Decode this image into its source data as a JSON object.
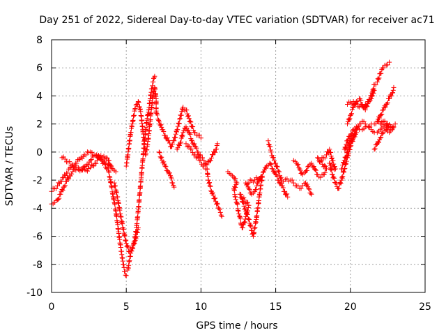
{
  "chart_data": {
    "type": "scatter",
    "title": "Day 251 of 2022, Sidereal Day-to-day VTEC variation (SDTVAR) for receiver ac71",
    "xlabel": "GPS time / hours",
    "ylabel": "SDTVAR / TECUs",
    "xlim": [
      0,
      25
    ],
    "ylim": [
      -10,
      8
    ],
    "xticks": [
      0,
      5,
      10,
      15,
      20,
      25
    ],
    "yticks": [
      -10,
      -8,
      -6,
      -4,
      -2,
      0,
      2,
      4,
      6,
      8
    ],
    "grid": true,
    "marker": "+",
    "color": "#ff0000",
    "series": [
      {
        "name": "SDTVAR",
        "points": [
          [
            0.0,
            -2.8
          ],
          [
            0.2,
            -2.6
          ],
          [
            0.4,
            -2.4
          ],
          [
            0.6,
            -2.1
          ],
          [
            0.8,
            -1.8
          ],
          [
            1.0,
            -1.5
          ],
          [
            1.3,
            -1.1
          ],
          [
            1.6,
            -0.8
          ],
          [
            1.9,
            -0.5
          ],
          [
            2.2,
            -0.2
          ],
          [
            2.6,
            0.0
          ],
          [
            3.0,
            -0.3
          ],
          [
            3.4,
            -0.6
          ],
          [
            3.8,
            -0.9
          ],
          [
            4.1,
            -1.2
          ],
          [
            4.3,
            -1.4
          ],
          [
            0.0,
            -3.7
          ],
          [
            0.2,
            -3.6
          ],
          [
            0.4,
            -3.4
          ],
          [
            0.6,
            -3.0
          ],
          [
            0.8,
            -2.5
          ],
          [
            1.0,
            -2.1
          ],
          [
            1.2,
            -1.7
          ],
          [
            1.4,
            -1.4
          ],
          [
            1.7,
            -1.1
          ],
          [
            2.0,
            -1.2
          ],
          [
            2.3,
            -1.3
          ],
          [
            2.6,
            -1.1
          ],
          [
            2.9,
            -0.8
          ],
          [
            3.2,
            -0.4
          ],
          [
            3.5,
            -0.3
          ],
          [
            3.8,
            -0.6
          ],
          [
            4.0,
            -1.0
          ],
          [
            0.7,
            -0.4
          ],
          [
            0.9,
            -0.5
          ],
          [
            1.1,
            -0.7
          ],
          [
            1.4,
            -0.9
          ],
          [
            1.7,
            -1.1
          ],
          [
            2.0,
            -1.3
          ],
          [
            2.3,
            -1.0
          ],
          [
            2.6,
            -0.6
          ],
          [
            2.8,
            -0.3
          ],
          [
            3.0,
            -0.2
          ],
          [
            3.3,
            -0.5
          ],
          [
            3.8,
            -1.3
          ],
          [
            3.9,
            -1.8
          ],
          [
            4.0,
            -2.4
          ],
          [
            4.1,
            -3.0
          ],
          [
            4.2,
            -3.6
          ],
          [
            4.3,
            -4.2
          ],
          [
            4.4,
            -5.0
          ],
          [
            4.5,
            -5.8
          ],
          [
            4.6,
            -6.6
          ],
          [
            4.7,
            -7.3
          ],
          [
            4.8,
            -8.0
          ],
          [
            4.9,
            -8.5
          ],
          [
            5.0,
            -8.8
          ],
          [
            4.2,
            -2.2
          ],
          [
            4.4,
            -3.2
          ],
          [
            4.6,
            -4.4
          ],
          [
            4.8,
            -5.5
          ],
          [
            5.0,
            -6.5
          ],
          [
            5.2,
            -7.1
          ],
          [
            5.4,
            -6.9
          ],
          [
            5.6,
            -6.3
          ],
          [
            5.8,
            -5.4
          ],
          [
            5.1,
            -8.4
          ],
          [
            5.2,
            -7.8
          ],
          [
            5.3,
            -7.2
          ],
          [
            5.4,
            -6.8
          ],
          [
            5.5,
            -6.5
          ],
          [
            5.6,
            -6.0
          ],
          [
            5.7,
            -5.2
          ],
          [
            5.8,
            -4.2
          ],
          [
            5.9,
            -3.0
          ],
          [
            6.0,
            -1.8
          ],
          [
            6.1,
            -0.6
          ],
          [
            6.2,
            0.6
          ],
          [
            6.3,
            1.6
          ],
          [
            6.4,
            2.4
          ],
          [
            6.5,
            3.0
          ],
          [
            6.6,
            3.8
          ],
          [
            6.7,
            4.5
          ],
          [
            6.8,
            5.0
          ],
          [
            6.9,
            5.4
          ],
          [
            5.0,
            -1.0
          ],
          [
            5.1,
            -0.2
          ],
          [
            5.2,
            0.6
          ],
          [
            5.3,
            1.4
          ],
          [
            5.4,
            2.0
          ],
          [
            5.5,
            2.6
          ],
          [
            5.6,
            3.1
          ],
          [
            5.7,
            3.4
          ],
          [
            5.8,
            3.6
          ],
          [
            5.9,
            3.2
          ],
          [
            6.0,
            2.6
          ],
          [
            6.1,
            1.6
          ],
          [
            6.2,
            0.6
          ],
          [
            6.3,
            -0.2
          ],
          [
            6.4,
            0.4
          ],
          [
            6.5,
            1.2
          ],
          [
            6.6,
            2.2
          ],
          [
            6.7,
            3.2
          ],
          [
            6.8,
            4.2
          ],
          [
            6.9,
            4.6
          ],
          [
            7.0,
            3.8
          ],
          [
            7.0,
            2.8
          ],
          [
            7.2,
            2.2
          ],
          [
            7.4,
            1.6
          ],
          [
            7.6,
            1.2
          ],
          [
            7.8,
            0.8
          ],
          [
            8.0,
            0.4
          ],
          [
            8.2,
            0.8
          ],
          [
            8.4,
            1.6
          ],
          [
            8.6,
            2.4
          ],
          [
            8.8,
            3.2
          ],
          [
            9.0,
            3.0
          ],
          [
            9.2,
            2.4
          ],
          [
            9.4,
            1.8
          ],
          [
            9.6,
            1.4
          ],
          [
            9.8,
            1.2
          ],
          [
            10.0,
            1.0
          ],
          [
            7.2,
            0.0
          ],
          [
            7.4,
            -0.6
          ],
          [
            7.6,
            -1.0
          ],
          [
            7.8,
            -1.4
          ],
          [
            8.0,
            -1.8
          ],
          [
            8.1,
            -2.2
          ],
          [
            8.2,
            -2.5
          ],
          [
            8.4,
            0.2
          ],
          [
            8.6,
            0.6
          ],
          [
            8.8,
            1.4
          ],
          [
            9.0,
            1.8
          ],
          [
            9.2,
            1.4
          ],
          [
            9.4,
            0.8
          ],
          [
            9.6,
            0.4
          ],
          [
            9.8,
            0.0
          ],
          [
            10.0,
            -0.4
          ],
          [
            10.2,
            -0.6
          ],
          [
            10.4,
            -0.9
          ],
          [
            10.6,
            -0.6
          ],
          [
            10.8,
            -0.2
          ],
          [
            11.0,
            0.2
          ],
          [
            11.1,
            0.6
          ],
          [
            9.0,
            0.6
          ],
          [
            9.3,
            0.2
          ],
          [
            9.6,
            -0.2
          ],
          [
            9.9,
            -0.6
          ],
          [
            10.2,
            -1.0
          ],
          [
            10.4,
            -1.2
          ],
          [
            10.5,
            -2.0
          ],
          [
            10.6,
            -2.4
          ],
          [
            10.7,
            -2.8
          ],
          [
            11.2,
            -4.0
          ],
          [
            11.3,
            -4.3
          ],
          [
            11.4,
            -4.6
          ],
          [
            11.8,
            -1.4
          ],
          [
            12.0,
            -1.6
          ],
          [
            12.2,
            -1.8
          ],
          [
            12.4,
            -2.2
          ],
          [
            12.2,
            -2.6
          ],
          [
            12.3,
            -3.2
          ],
          [
            12.4,
            -3.6
          ],
          [
            12.5,
            -4.2
          ],
          [
            12.6,
            -4.6
          ],
          [
            12.7,
            -5.2
          ],
          [
            12.8,
            -5.4
          ],
          [
            12.9,
            -5.0
          ],
          [
            13.0,
            -4.6
          ],
          [
            13.1,
            -4.2
          ],
          [
            13.2,
            -3.8
          ],
          [
            12.6,
            -3.0
          ],
          [
            12.8,
            -3.6
          ],
          [
            13.0,
            -4.2
          ],
          [
            13.2,
            -4.8
          ],
          [
            13.4,
            -5.6
          ],
          [
            13.5,
            -6.0
          ],
          [
            13.6,
            -5.4
          ],
          [
            13.7,
            -4.8
          ],
          [
            13.8,
            -4.0
          ],
          [
            13.9,
            -3.2
          ],
          [
            14.0,
            -2.4
          ],
          [
            14.1,
            -1.8
          ],
          [
            13.0,
            -2.2
          ],
          [
            13.2,
            -2.6
          ],
          [
            13.4,
            -3.0
          ],
          [
            13.6,
            -2.8
          ],
          [
            13.8,
            -2.2
          ],
          [
            14.0,
            -1.8
          ],
          [
            14.2,
            -1.4
          ],
          [
            14.4,
            -1.0
          ],
          [
            14.6,
            -0.8
          ],
          [
            14.8,
            -1.2
          ],
          [
            15.0,
            -1.6
          ],
          [
            15.2,
            -2.0
          ],
          [
            15.4,
            -2.4
          ],
          [
            15.6,
            -2.8
          ],
          [
            15.8,
            -3.2
          ],
          [
            14.5,
            0.8
          ],
          [
            14.6,
            0.4
          ],
          [
            14.7,
            0.0
          ],
          [
            14.8,
            -0.4
          ],
          [
            15.0,
            -0.8
          ],
          [
            15.2,
            -1.4
          ],
          [
            15.4,
            -2.0
          ],
          [
            16.0,
            -2.0
          ],
          [
            16.2,
            -2.2
          ],
          [
            16.4,
            -2.4
          ],
          [
            16.6,
            -2.6
          ],
          [
            16.8,
            -2.4
          ],
          [
            17.0,
            -2.2
          ],
          [
            17.2,
            -2.6
          ],
          [
            17.4,
            -3.0
          ],
          [
            16.2,
            -0.6
          ],
          [
            16.4,
            -0.8
          ],
          [
            16.6,
            -1.2
          ],
          [
            16.8,
            -1.6
          ],
          [
            17.0,
            -1.4
          ],
          [
            17.2,
            -1.0
          ],
          [
            17.4,
            -0.8
          ],
          [
            17.6,
            -1.2
          ],
          [
            17.8,
            -1.6
          ],
          [
            18.0,
            -1.8
          ],
          [
            18.2,
            -1.6
          ],
          [
            18.4,
            -1.2
          ],
          [
            17.8,
            -0.4
          ],
          [
            18.0,
            -0.6
          ],
          [
            18.2,
            -0.4
          ],
          [
            18.4,
            -0.2
          ],
          [
            18.6,
            0.2
          ],
          [
            18.8,
            -0.6
          ],
          [
            19.0,
            -1.2
          ],
          [
            18.6,
            -0.8
          ],
          [
            18.8,
            -1.6
          ],
          [
            19.0,
            -2.2
          ],
          [
            19.2,
            -2.6
          ],
          [
            19.4,
            -2.0
          ],
          [
            19.6,
            -1.2
          ],
          [
            19.8,
            -0.4
          ],
          [
            20.0,
            0.4
          ],
          [
            20.2,
            1.0
          ],
          [
            20.4,
            1.4
          ],
          [
            19.6,
            0.2
          ],
          [
            19.8,
            0.8
          ],
          [
            20.0,
            1.2
          ],
          [
            20.2,
            1.6
          ],
          [
            20.4,
            1.8
          ],
          [
            20.6,
            1.6
          ],
          [
            20.8,
            1.6
          ],
          [
            21.0,
            1.8
          ],
          [
            21.2,
            1.8
          ],
          [
            21.4,
            2.0
          ],
          [
            21.6,
            2.0
          ],
          [
            21.8,
            2.2
          ],
          [
            22.0,
            2.0
          ],
          [
            22.2,
            2.2
          ],
          [
            22.4,
            2.0
          ],
          [
            22.6,
            1.6
          ],
          [
            22.8,
            1.8
          ],
          [
            23.0,
            2.0
          ],
          [
            19.4,
            -1.2
          ],
          [
            19.6,
            -0.6
          ],
          [
            19.8,
            0.0
          ],
          [
            20.0,
            0.6
          ],
          [
            20.2,
            1.2
          ],
          [
            20.4,
            1.6
          ],
          [
            20.6,
            2.0
          ],
          [
            20.8,
            2.2
          ],
          [
            21.0,
            2.0
          ],
          [
            21.2,
            1.8
          ],
          [
            21.4,
            1.6
          ],
          [
            21.6,
            1.4
          ],
          [
            21.8,
            1.4
          ],
          [
            22.0,
            1.6
          ],
          [
            22.2,
            1.8
          ],
          [
            22.4,
            1.6
          ],
          [
            19.8,
            2.0
          ],
          [
            20.0,
            2.6
          ],
          [
            20.2,
            3.2
          ],
          [
            20.4,
            3.6
          ],
          [
            20.6,
            3.8
          ],
          [
            20.8,
            3.4
          ],
          [
            21.0,
            3.0
          ],
          [
            21.2,
            3.6
          ],
          [
            21.4,
            4.0
          ],
          [
            21.6,
            4.4
          ],
          [
            19.8,
            3.4
          ],
          [
            20.2,
            3.6
          ],
          [
            20.6,
            3.2
          ],
          [
            21.0,
            3.4
          ],
          [
            21.4,
            3.8
          ],
          [
            21.6,
            4.8
          ],
          [
            21.8,
            5.0
          ],
          [
            22.0,
            5.6
          ],
          [
            22.2,
            6.0
          ],
          [
            22.4,
            6.2
          ],
          [
            22.6,
            6.4
          ],
          [
            21.6,
            0.2
          ],
          [
            21.8,
            0.6
          ],
          [
            22.0,
            1.0
          ],
          [
            22.2,
            1.4
          ],
          [
            22.4,
            1.6
          ],
          [
            22.6,
            1.4
          ],
          [
            22.8,
            1.6
          ],
          [
            22.9,
            1.8
          ],
          [
            21.8,
            2.2
          ],
          [
            22.0,
            2.6
          ],
          [
            22.2,
            3.0
          ],
          [
            22.4,
            3.4
          ],
          [
            22.6,
            3.8
          ],
          [
            22.8,
            4.2
          ],
          [
            22.9,
            4.6
          ]
        ]
      }
    ]
  }
}
